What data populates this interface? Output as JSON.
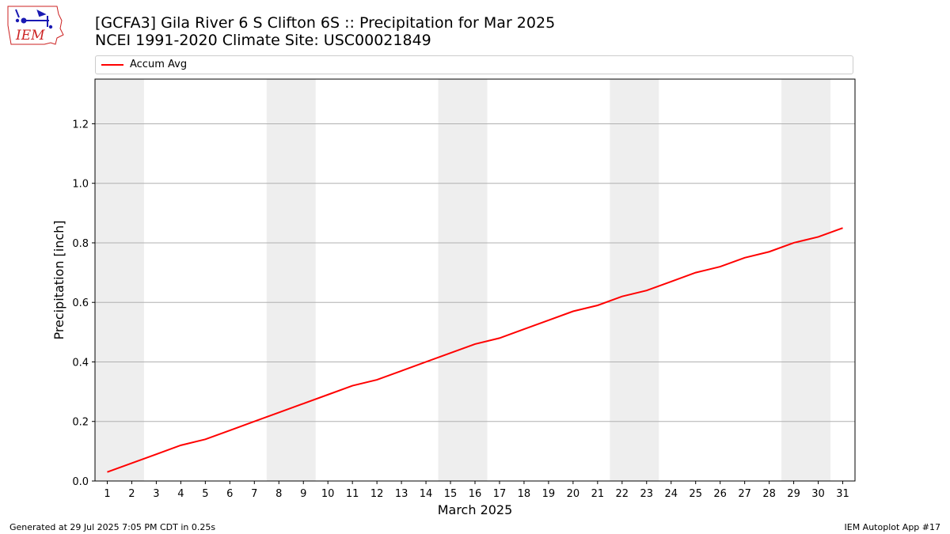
{
  "header": {
    "title_line1": "[GCFA3] Gila River 6 S Clifton 6S :: Precipitation for Mar 2025",
    "title_line2": "NCEI 1991-2020 Climate Site: USC00021849",
    "logo_text": "IEM"
  },
  "legend": {
    "label": "Accum Avg"
  },
  "footer": {
    "left": "Generated at 29 Jul 2025 7:05 PM CDT in 0.25s",
    "right": "IEM Autoplot App #17"
  },
  "colors": {
    "series": "#ff0000",
    "weekend_shade": "#eeeeee",
    "grid": "#b0b0b0",
    "logo": "#cc2222"
  },
  "chart_data": {
    "type": "line",
    "xlabel": "March 2025",
    "ylabel": "Precipitation [inch]",
    "x": [
      1,
      2,
      3,
      4,
      5,
      6,
      7,
      8,
      9,
      10,
      11,
      12,
      13,
      14,
      15,
      16,
      17,
      18,
      19,
      20,
      21,
      22,
      23,
      24,
      25,
      26,
      27,
      28,
      29,
      30,
      31
    ],
    "xlim": [
      0.5,
      31.5
    ],
    "ylim": [
      0,
      1.35
    ],
    "yticks": [
      0.0,
      0.2,
      0.4,
      0.6,
      0.8,
      1.0,
      1.2
    ],
    "ytick_labels": [
      "0.0",
      "0.2",
      "0.4",
      "0.6",
      "0.8",
      "1.0",
      "1.2"
    ],
    "grid": "horizontal",
    "legend_position": "top",
    "shaded_ranges": [
      [
        0.5,
        2.5
      ],
      [
        7.5,
        9.5
      ],
      [
        14.5,
        16.5
      ],
      [
        21.5,
        23.5
      ],
      [
        28.5,
        30.5
      ]
    ],
    "series": [
      {
        "name": "Accum Avg",
        "values": [
          0.03,
          0.06,
          0.09,
          0.12,
          0.14,
          0.17,
          0.2,
          0.23,
          0.26,
          0.29,
          0.32,
          0.34,
          0.37,
          0.4,
          0.43,
          0.46,
          0.48,
          0.51,
          0.54,
          0.57,
          0.59,
          0.62,
          0.64,
          0.67,
          0.7,
          0.72,
          0.75,
          0.77,
          0.8,
          0.82,
          0.85
        ]
      }
    ]
  }
}
